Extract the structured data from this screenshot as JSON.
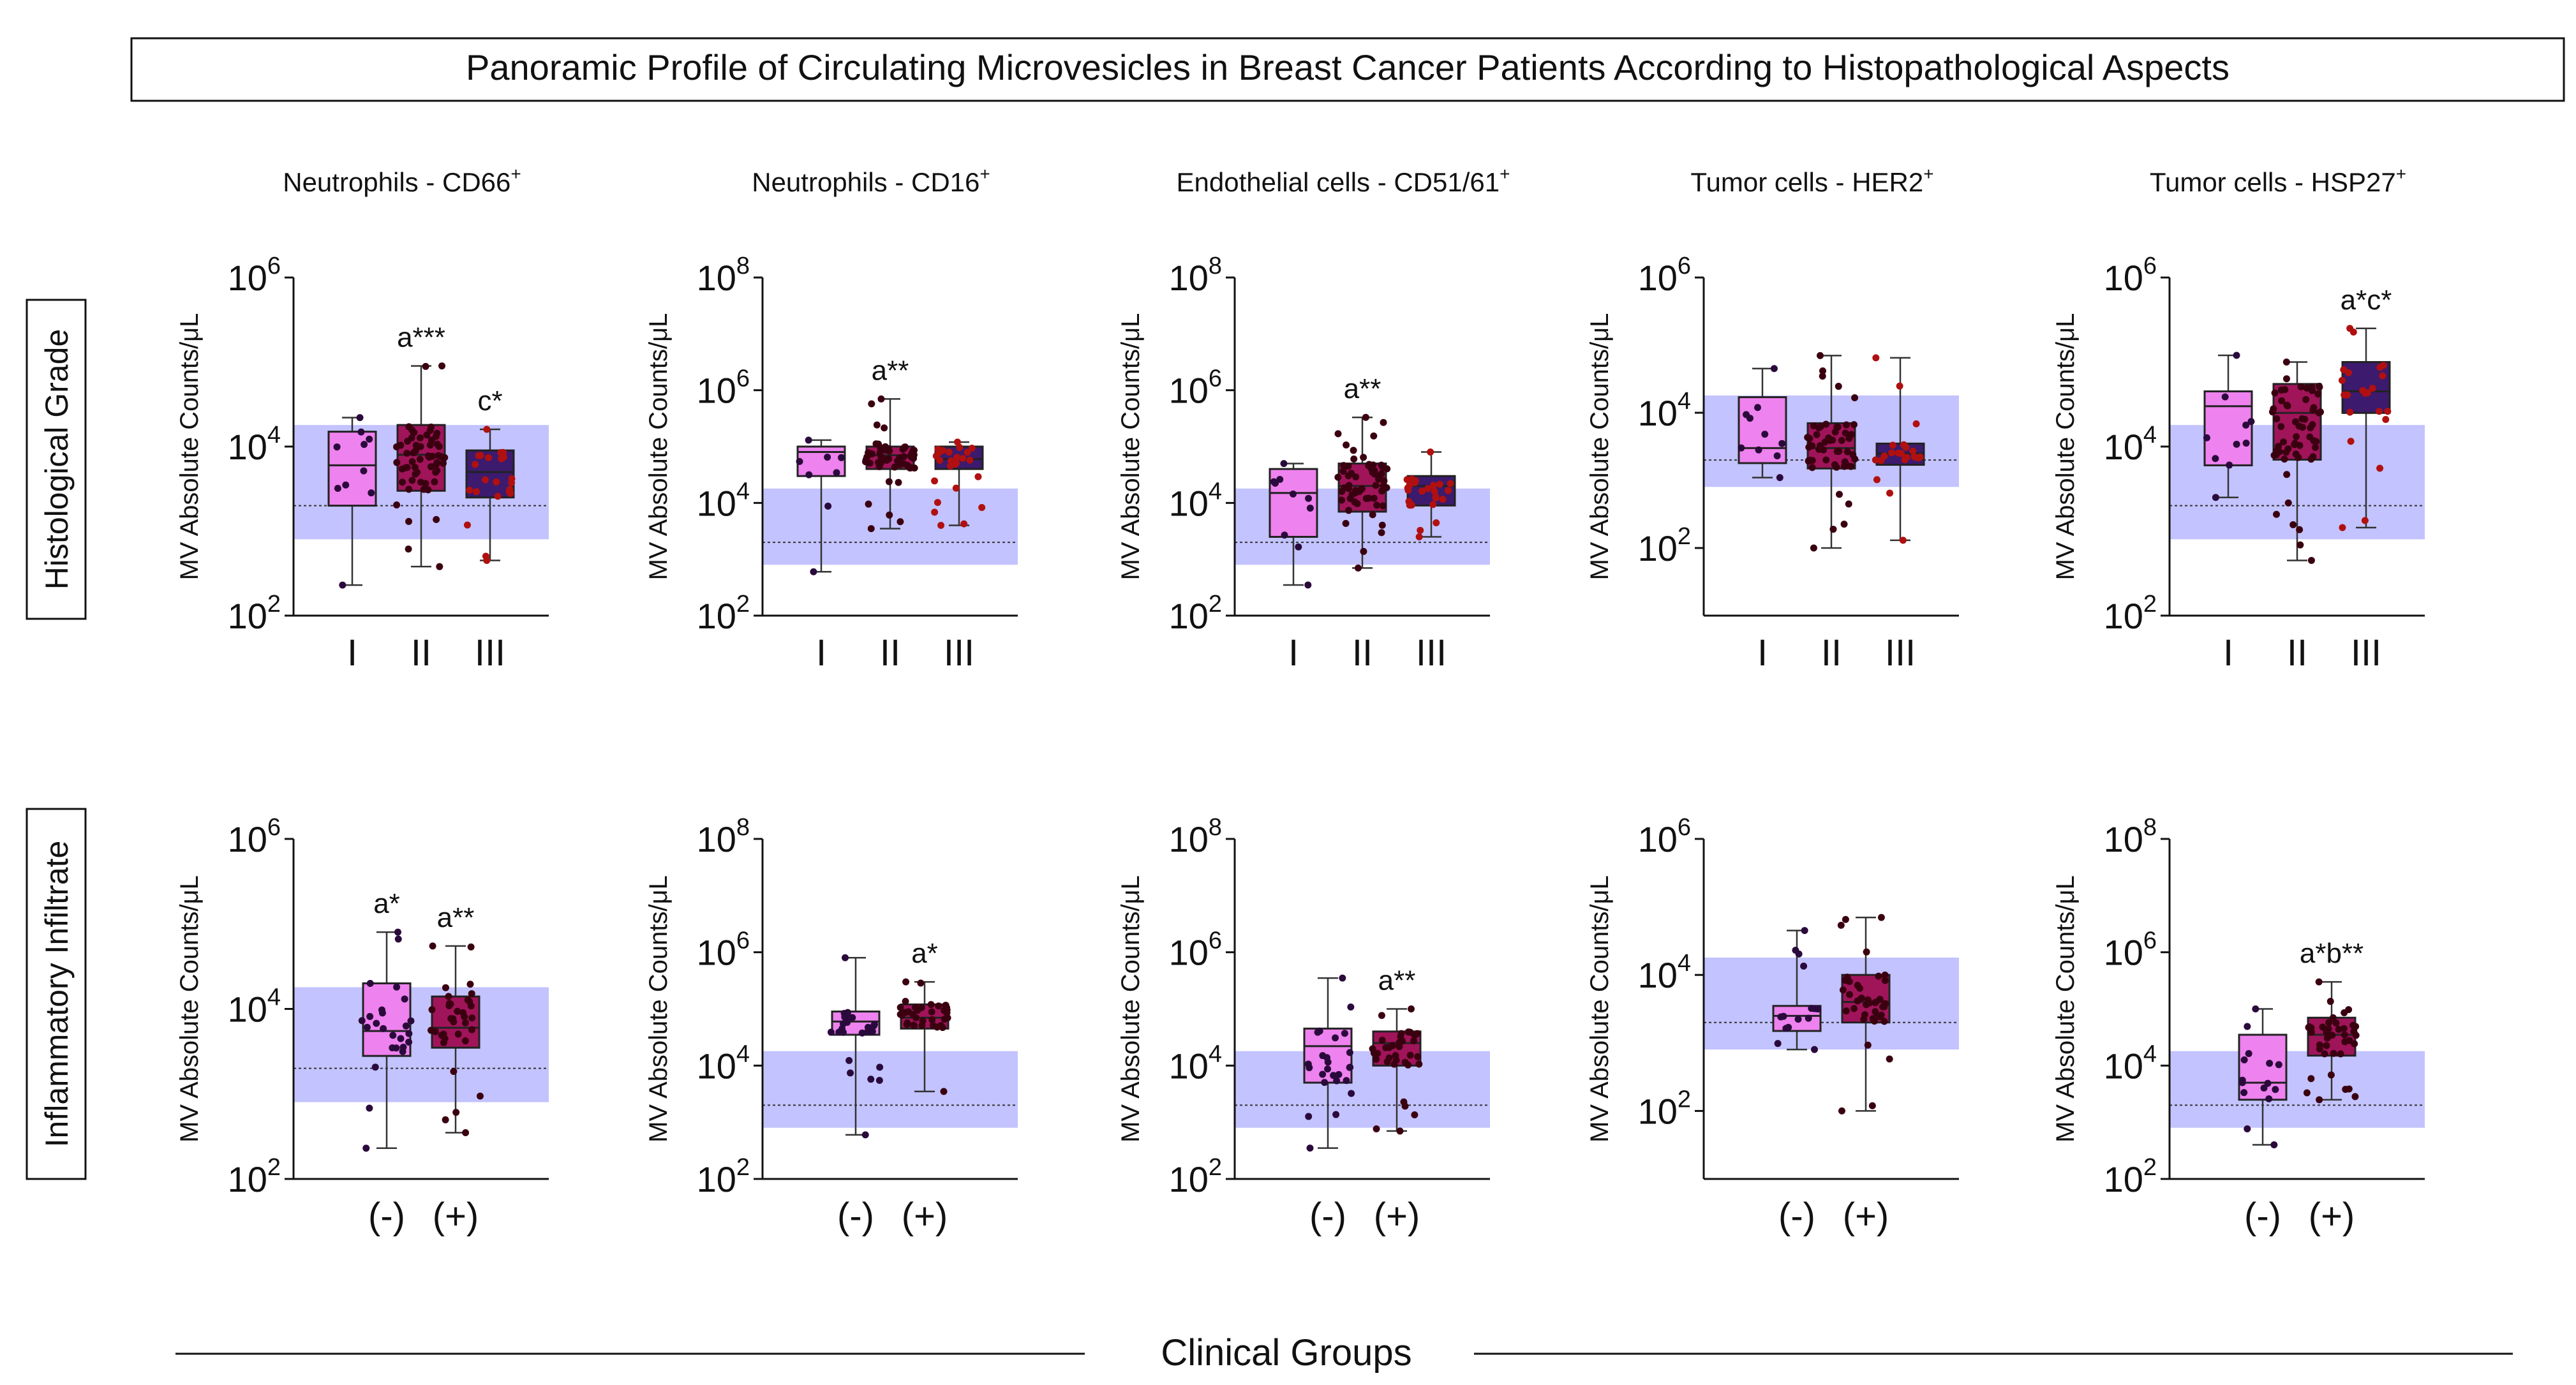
{
  "title": "Panoramic Profile of Circulating Microvesicles in Breast Cancer Patients According to Histopathological Aspects",
  "footer": "Clinical Groups",
  "colors": {
    "group1": "#ee82ee",
    "group2": "#a0145a",
    "group3": "#3c1a6e",
    "reference_band": "#b8b8ff",
    "dot_group1": "#2a0a3c",
    "dot_group2": "#3a0010",
    "dot_group3": "#b01010"
  },
  "chart_data": [
    {
      "type": "box",
      "row": "Histological Grade",
      "column": 0,
      "title": "Neutrophils - CD66",
      "superscript": "+",
      "ylabel": "MV Absolute Counts/μL",
      "yscale": "log",
      "ylim_exp": [
        2,
        6
      ],
      "tick_exponents": [
        2,
        4,
        6
      ],
      "reference": {
        "low": 800,
        "high": 18000,
        "median": 2000
      },
      "groups": [
        {
          "label": "I",
          "color": "group1",
          "min": 230,
          "q1": 2000,
          "median": 6000,
          "q3": 15000,
          "max": 22000,
          "n": 10,
          "annotation": ""
        },
        {
          "label": "II",
          "color": "group2",
          "min": 380,
          "q1": 3000,
          "median": 8000,
          "q3": 18000,
          "max": 90000,
          "n": 60,
          "annotation": "a***"
        },
        {
          "label": "III",
          "color": "group3",
          "min": 450,
          "q1": 2500,
          "median": 5000,
          "q3": 9000,
          "max": 16000,
          "n": 22,
          "annotation": "c*"
        }
      ]
    },
    {
      "type": "box",
      "row": "Histological Grade",
      "column": 1,
      "title": "Neutrophils - CD16",
      "superscript": "+",
      "ylabel": "MV Absolute Counts/μL",
      "yscale": "log",
      "ylim_exp": [
        2,
        8
      ],
      "tick_exponents": [
        2,
        4,
        6,
        8
      ],
      "reference": {
        "low": 800,
        "high": 18000,
        "median": 2000
      },
      "groups": [
        {
          "label": "I",
          "color": "group1",
          "min": 600,
          "q1": 30000,
          "median": 80000,
          "q3": 100000,
          "max": 130000,
          "n": 8,
          "annotation": ""
        },
        {
          "label": "II",
          "color": "group2",
          "min": 3500,
          "q1": 40000,
          "median": 70000,
          "q3": 100000,
          "max": 700000,
          "n": 55,
          "annotation": "a**"
        },
        {
          "label": "III",
          "color": "group3",
          "min": 4000,
          "q1": 40000,
          "median": 60000,
          "q3": 100000,
          "max": 120000,
          "n": 25,
          "annotation": ""
        }
      ]
    },
    {
      "type": "box",
      "row": "Histological Grade",
      "column": 2,
      "title": "Endothelial cells - CD51/61",
      "superscript": "+",
      "ylabel": "MV Absolute Counts/μL",
      "yscale": "log",
      "ylim_exp": [
        2,
        8
      ],
      "tick_exponents": [
        2,
        4,
        6,
        8
      ],
      "reference": {
        "low": 800,
        "high": 18000,
        "median": 2000
      },
      "groups": [
        {
          "label": "I",
          "color": "group1",
          "min": 350,
          "q1": 2500,
          "median": 15000,
          "q3": 40000,
          "max": 50000,
          "n": 10,
          "annotation": ""
        },
        {
          "label": "II",
          "color": "group2",
          "min": 700,
          "q1": 7000,
          "median": 20000,
          "q3": 50000,
          "max": 330000,
          "n": 60,
          "annotation": "a**"
        },
        {
          "label": "III",
          "color": "group3",
          "min": 2500,
          "q1": 9000,
          "median": 20000,
          "q3": 30000,
          "max": 80000,
          "n": 25,
          "annotation": ""
        }
      ]
    },
    {
      "type": "box",
      "row": "Histological Grade",
      "column": 3,
      "title": "Tumor cells - HER2",
      "superscript": "+",
      "ylabel": "MV Absolute Counts/μL",
      "yscale": "log",
      "ylim_exp": [
        1,
        6
      ],
      "tick_exponents": [
        2,
        4,
        6
      ],
      "reference": {
        "low": 800,
        "high": 18000,
        "median": 2000
      },
      "groups": [
        {
          "label": "I",
          "color": "group1",
          "min": 1100,
          "q1": 1800,
          "median": 3000,
          "q3": 17000,
          "max": 45000,
          "n": 10,
          "annotation": ""
        },
        {
          "label": "II",
          "color": "group2",
          "min": 100,
          "q1": 1500,
          "median": 3000,
          "q3": 7000,
          "max": 70000,
          "n": 55,
          "annotation": ""
        },
        {
          "label": "III",
          "color": "group3",
          "min": 130,
          "q1": 1700,
          "median": 2500,
          "q3": 3500,
          "max": 65000,
          "n": 22,
          "annotation": ""
        }
      ]
    },
    {
      "type": "box",
      "row": "Histological Grade",
      "column": 4,
      "title": "Tumor cells - HSP27",
      "superscript": "+",
      "ylabel": "MV Absolute Counts/μL",
      "yscale": "log",
      "ylim_exp": [
        2,
        6
      ],
      "tick_exponents": [
        2,
        4,
        6
      ],
      "reference": {
        "low": 800,
        "high": 18000,
        "median": 2000
      },
      "groups": [
        {
          "label": "I",
          "color": "group1",
          "min": 2500,
          "q1": 6000,
          "median": 30000,
          "q3": 45000,
          "max": 120000,
          "n": 10,
          "annotation": ""
        },
        {
          "label": "II",
          "color": "group2",
          "min": 450,
          "q1": 7000,
          "median": 25000,
          "q3": 55000,
          "max": 100000,
          "n": 60,
          "annotation": ""
        },
        {
          "label": "III",
          "color": "group3",
          "min": 1100,
          "q1": 25000,
          "median": 45000,
          "q3": 100000,
          "max": 250000,
          "n": 22,
          "annotation": "a*c*"
        }
      ]
    },
    {
      "type": "box",
      "row": "Inflammatory Infiltrate",
      "column": 0,
      "title": "",
      "superscript": "",
      "ylabel": "MV Absolute Counts/μL",
      "yscale": "log",
      "ylim_exp": [
        2,
        6
      ],
      "tick_exponents": [
        2,
        4,
        6
      ],
      "reference": {
        "low": 800,
        "high": 18000,
        "median": 2000
      },
      "groups": [
        {
          "label": "(-)",
          "color": "group1",
          "min": 230,
          "q1": 2800,
          "median": 5500,
          "q3": 20000,
          "max": 80000,
          "n": 25,
          "annotation": "a*"
        },
        {
          "label": "(+)",
          "color": "group2",
          "min": 350,
          "q1": 3500,
          "median": 6000,
          "q3": 14000,
          "max": 55000,
          "n": 35,
          "annotation": "a**"
        }
      ]
    },
    {
      "type": "box",
      "row": "Inflammatory Infiltrate",
      "column": 1,
      "title": "",
      "superscript": "",
      "ylabel": "MV Absolute Counts/μL",
      "yscale": "log",
      "ylim_exp": [
        2,
        8
      ],
      "tick_exponents": [
        2,
        4,
        6,
        8
      ],
      "reference": {
        "low": 800,
        "high": 18000,
        "median": 2000
      },
      "groups": [
        {
          "label": "(-)",
          "color": "group1",
          "min": 600,
          "q1": 35000,
          "median": 60000,
          "q3": 90000,
          "max": 800000,
          "n": 25,
          "annotation": ""
        },
        {
          "label": "(+)",
          "color": "group2",
          "min": 3500,
          "q1": 45000,
          "median": 70000,
          "q3": 120000,
          "max": 300000,
          "n": 35,
          "annotation": "a*"
        }
      ]
    },
    {
      "type": "box",
      "row": "Inflammatory Infiltrate",
      "column": 2,
      "title": "",
      "superscript": "",
      "ylabel": "MV Absolute Counts/μL",
      "yscale": "log",
      "ylim_exp": [
        2,
        8
      ],
      "tick_exponents": [
        2,
        4,
        6,
        8
      ],
      "reference": {
        "low": 800,
        "high": 18000,
        "median": 2000
      },
      "groups": [
        {
          "label": "(-)",
          "color": "group1",
          "min": 350,
          "q1": 5000,
          "median": 22000,
          "q3": 45000,
          "max": 350000,
          "n": 25,
          "annotation": ""
        },
        {
          "label": "(+)",
          "color": "group2",
          "min": 700,
          "q1": 10000,
          "median": 25000,
          "q3": 40000,
          "max": 100000,
          "n": 35,
          "annotation": "a**"
        }
      ]
    },
    {
      "type": "box",
      "row": "Inflammatory Infiltrate",
      "column": 3,
      "title": "",
      "superscript": "",
      "ylabel": "MV Absolute Counts/μL",
      "yscale": "log",
      "ylim_exp": [
        1,
        6
      ],
      "tick_exponents": [
        2,
        4,
        6
      ],
      "reference": {
        "low": 800,
        "high": 18000,
        "median": 2000
      },
      "groups": [
        {
          "label": "(-)",
          "color": "group1",
          "min": 800,
          "q1": 1500,
          "median": 2500,
          "q3": 3500,
          "max": 45000,
          "n": 15,
          "annotation": ""
        },
        {
          "label": "(+)",
          "color": "group2",
          "min": 100,
          "q1": 2000,
          "median": 4000,
          "q3": 10000,
          "max": 70000,
          "n": 40,
          "annotation": ""
        }
      ]
    },
    {
      "type": "box",
      "row": "Inflammatory Infiltrate",
      "column": 4,
      "title": "",
      "superscript": "",
      "ylabel": "MV Absolute Counts/μL",
      "yscale": "log",
      "ylim_exp": [
        2,
        8
      ],
      "tick_exponents": [
        2,
        4,
        6,
        8
      ],
      "reference": {
        "low": 800,
        "high": 18000,
        "median": 2000
      },
      "groups": [
        {
          "label": "(-)",
          "color": "group1",
          "min": 400,
          "q1": 2500,
          "median": 5000,
          "q3": 35000,
          "max": 100000,
          "n": 15,
          "annotation": ""
        },
        {
          "label": "(+)",
          "color": "group2",
          "min": 2500,
          "q1": 15000,
          "median": 35000,
          "q3": 70000,
          "max": 300000,
          "n": 40,
          "annotation": "a*b**"
        }
      ]
    }
  ],
  "rows": [
    "Histological Grade",
    "Inflammatory Infiltrate"
  ]
}
